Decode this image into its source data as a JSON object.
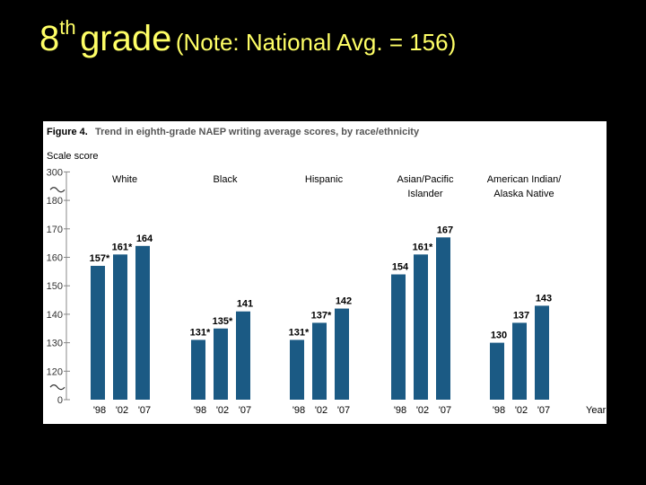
{
  "slide": {
    "title_prefix": "8",
    "title_sup": "th",
    "title_main": "grade",
    "title_note": "(Note: National Avg. = 156)"
  },
  "figure": {
    "caption_label": "Figure 4.",
    "caption_title": "Trend in eighth-grade NAEP writing average scores, by race/ethnicity",
    "year_label": "Year"
  },
  "chart_data": {
    "type": "bar",
    "title": "Trend in eighth-grade NAEP writing average scores, by race/ethnicity",
    "ylabel": "Scale score",
    "xlabel": "Year",
    "ylim": [
      110,
      190
    ],
    "y_ticks": [
      0,
      120,
      130,
      140,
      150,
      160,
      170,
      180,
      300
    ],
    "axis_break": true,
    "grid": false,
    "bar_color": "#1b5a84",
    "groups": [
      {
        "name_lines": [
          "White"
        ],
        "years": [
          "'98",
          "'02",
          "'07"
        ],
        "values": [
          157,
          161,
          164
        ],
        "labels": [
          "157*",
          "161*",
          "164"
        ]
      },
      {
        "name_lines": [
          "Black"
        ],
        "years": [
          "'98",
          "'02",
          "'07"
        ],
        "values": [
          131,
          135,
          141
        ],
        "labels": [
          "131*",
          "135*",
          "141"
        ]
      },
      {
        "name_lines": [
          "Hispanic"
        ],
        "years": [
          "'98",
          "'02",
          "'07"
        ],
        "values": [
          131,
          137,
          142
        ],
        "labels": [
          "131*",
          "137*",
          "142"
        ]
      },
      {
        "name_lines": [
          "Asian/Pacific",
          "Islander"
        ],
        "years": [
          "'98",
          "'02",
          "'07"
        ],
        "values": [
          154,
          161,
          167
        ],
        "labels": [
          "154",
          "161*",
          "167"
        ]
      },
      {
        "name_lines": [
          "American Indian/",
          "Alaska Native"
        ],
        "years": [
          "'98",
          "'02",
          "'07"
        ],
        "values": [
          130,
          137,
          143
        ],
        "labels": [
          "130",
          "137",
          "143"
        ]
      }
    ]
  }
}
